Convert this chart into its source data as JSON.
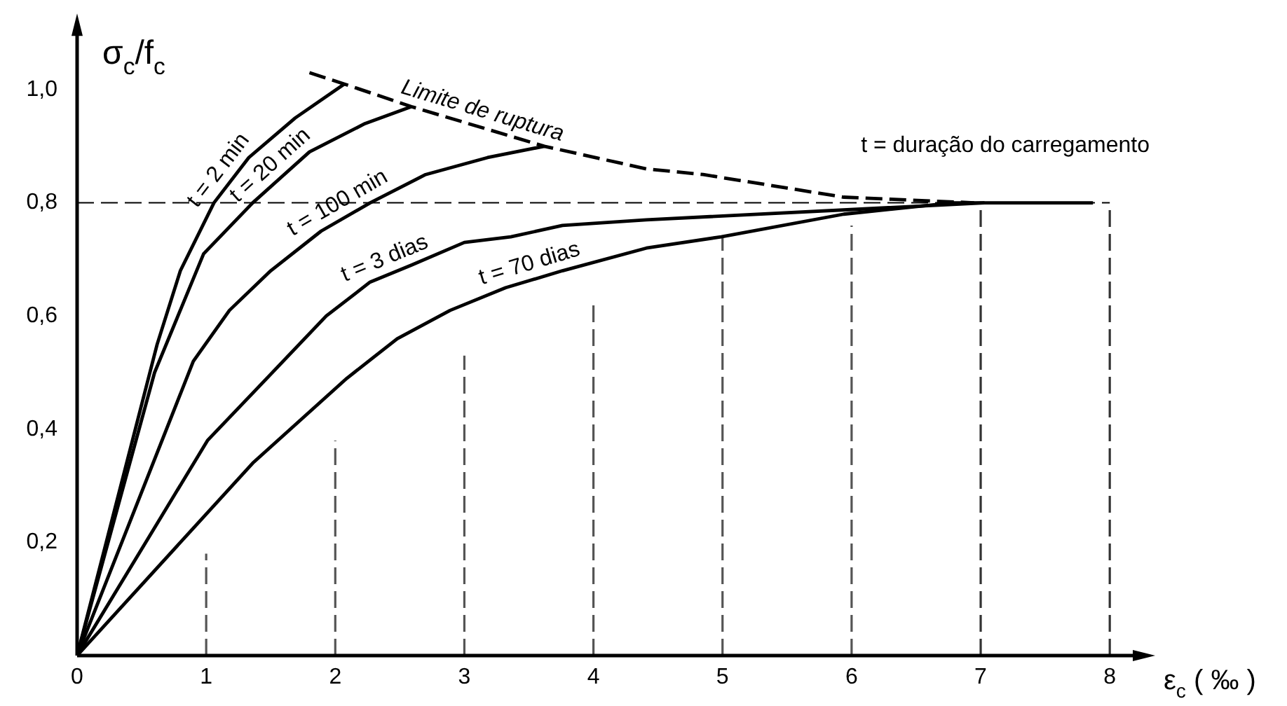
{
  "chart_data": {
    "type": "line",
    "xlabel": "ε$_{c}$ ( ‰ )",
    "ylabel": "σ$_{c}$/f$_{c}$",
    "annotations": [
      "t = duração do carregamento"
    ],
    "xlim": [
      0,
      8.2
    ],
    "ylim": [
      0,
      1.1
    ],
    "xticks": [
      0,
      1,
      2,
      3,
      4,
      5,
      6,
      7,
      8
    ],
    "yticks": [
      {
        "value": 0.2,
        "label": "0,2"
      },
      {
        "value": 0.4,
        "label": "0,4"
      },
      {
        "value": 0.6,
        "label": "0,6"
      },
      {
        "value": 0.8,
        "label": "0,8"
      },
      {
        "value": 1.0,
        "label": "1,0"
      }
    ],
    "grid": false,
    "legend": false,
    "marker": "none",
    "ref_lines": [
      {
        "axis": "y",
        "value": 0.8,
        "label": null,
        "line_style": "dashed"
      },
      {
        "axis": "x",
        "value": 7,
        "label": null,
        "line_style": "dashed",
        "color": "#333333"
      },
      {
        "axis": "x",
        "value": 8,
        "label": null,
        "line_style": "dashed",
        "color": "#333333"
      }
    ],
    "series": [
      {
        "name": "t = 2 min",
        "color": "#000000",
        "x": [
          0,
          0.62,
          0.8,
          1.06,
          1.33,
          1.69,
          2.07
        ],
        "values": [
          0,
          0.55,
          0.68,
          0.8,
          0.88,
          0.95,
          1.01
        ]
      },
      {
        "name": "t = 20 min",
        "color": "#000000",
        "x": [
          0,
          0.6,
          0.98,
          1.36,
          1.8,
          2.23,
          2.59
        ],
        "values": [
          0,
          0.5,
          0.71,
          0.8,
          0.89,
          0.94,
          0.97
        ]
      },
      {
        "name": "t = 100 min",
        "color": "#000000",
        "x": [
          0,
          0.9,
          1.18,
          1.5,
          1.89,
          2.27,
          2.7,
          3.18,
          3.62
        ],
        "values": [
          0,
          0.52,
          0.61,
          0.68,
          0.75,
          0.8,
          0.85,
          0.88,
          0.9
        ]
      },
      {
        "name": "t = 3 dias",
        "color": "#000000",
        "x": [
          0,
          1.01,
          1.47,
          1.93,
          2.27,
          2.59,
          3.0,
          3.36,
          3.76,
          4.41,
          7.03
        ],
        "values": [
          0,
          0.38,
          0.49,
          0.6,
          0.66,
          0.69,
          0.73,
          0.74,
          0.76,
          0.77,
          0.8
        ]
      },
      {
        "name": "t = 70 dias",
        "color": "#000000",
        "x": [
          0,
          1.36,
          2.09,
          2.48,
          2.89,
          3.32,
          3.76,
          4.41,
          4.99,
          5.94,
          6.78,
          7.87
        ],
        "values": [
          0,
          0.34,
          0.49,
          0.56,
          0.61,
          0.65,
          0.68,
          0.72,
          0.74,
          0.78,
          0.8,
          0.8
        ]
      },
      {
        "name": "Limite de ruptura",
        "color": "#000000",
        "line_style": "dashed",
        "x": [
          1.8,
          2.07,
          2.59,
          3.62,
          4.41,
          4.85,
          5.94,
          6.95
        ],
        "values": [
          1.03,
          1.01,
          0.97,
          0.9,
          0.86,
          0.85,
          0.81,
          0.8
        ]
      },
      {
        "color": "#555555",
        "line_style": "dashed",
        "x": [
          1,
          1
        ],
        "values": [
          0,
          0.18
        ]
      },
      {
        "color": "#555555",
        "line_style": "dashed",
        "x": [
          2,
          2
        ],
        "values": [
          0,
          0.38
        ]
      },
      {
        "color": "#555555",
        "line_style": "dashed",
        "x": [
          3,
          3
        ],
        "values": [
          0,
          0.53
        ]
      },
      {
        "color": "#555555",
        "line_style": "dashed",
        "x": [
          4,
          4
        ],
        "values": [
          0,
          0.62
        ]
      },
      {
        "color": "#555555",
        "line_style": "dashed",
        "x": [
          5,
          5
        ],
        "values": [
          0,
          0.74
        ]
      },
      {
        "color": "#555555",
        "line_style": "dashed",
        "x": [
          6,
          6
        ],
        "values": [
          0,
          0.76
        ]
      }
    ]
  }
}
